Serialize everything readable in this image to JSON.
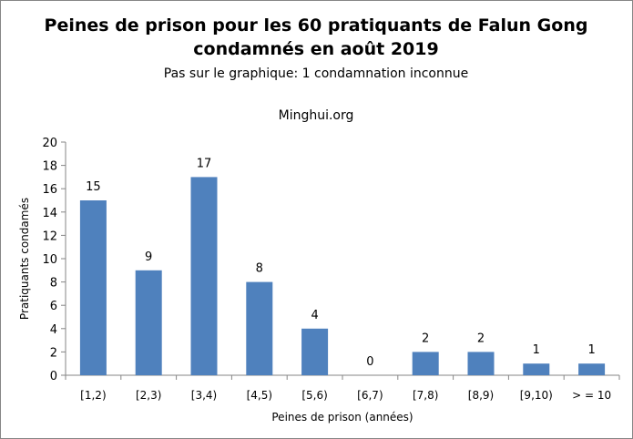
{
  "chart_data": {
    "type": "bar",
    "title": "Peines de prison pour les 60 pratiquants de Falun Gong condamnés en août 2019",
    "title_lines": [
      "Peines de prison pour les 60 pratiquants de Falun Gong",
      "condamnés en août 2019"
    ],
    "subtitle": "Pas sur le graphique: 1 condamnation inconnue",
    "source": "Minghui.org",
    "xlabel": "Peines de prison (années)",
    "ylabel": "Pratiquants condamés",
    "categories": [
      "[1,2)",
      "[2,3)",
      "[3,4)",
      "[4,5)",
      "[5,6)",
      "[6,7)",
      "[7,8)",
      "[8,9)",
      "[9,10)",
      "> = 10"
    ],
    "values": [
      15,
      9,
      17,
      8,
      4,
      0,
      2,
      2,
      1,
      1
    ],
    "ylim": [
      0,
      20
    ],
    "yticks": [
      0,
      2,
      4,
      6,
      8,
      10,
      12,
      14,
      16,
      18,
      20
    ],
    "grid": false,
    "legend": "none",
    "data_labels": true,
    "bar_color": "#4F81BD",
    "axis_color": "#868686"
  }
}
